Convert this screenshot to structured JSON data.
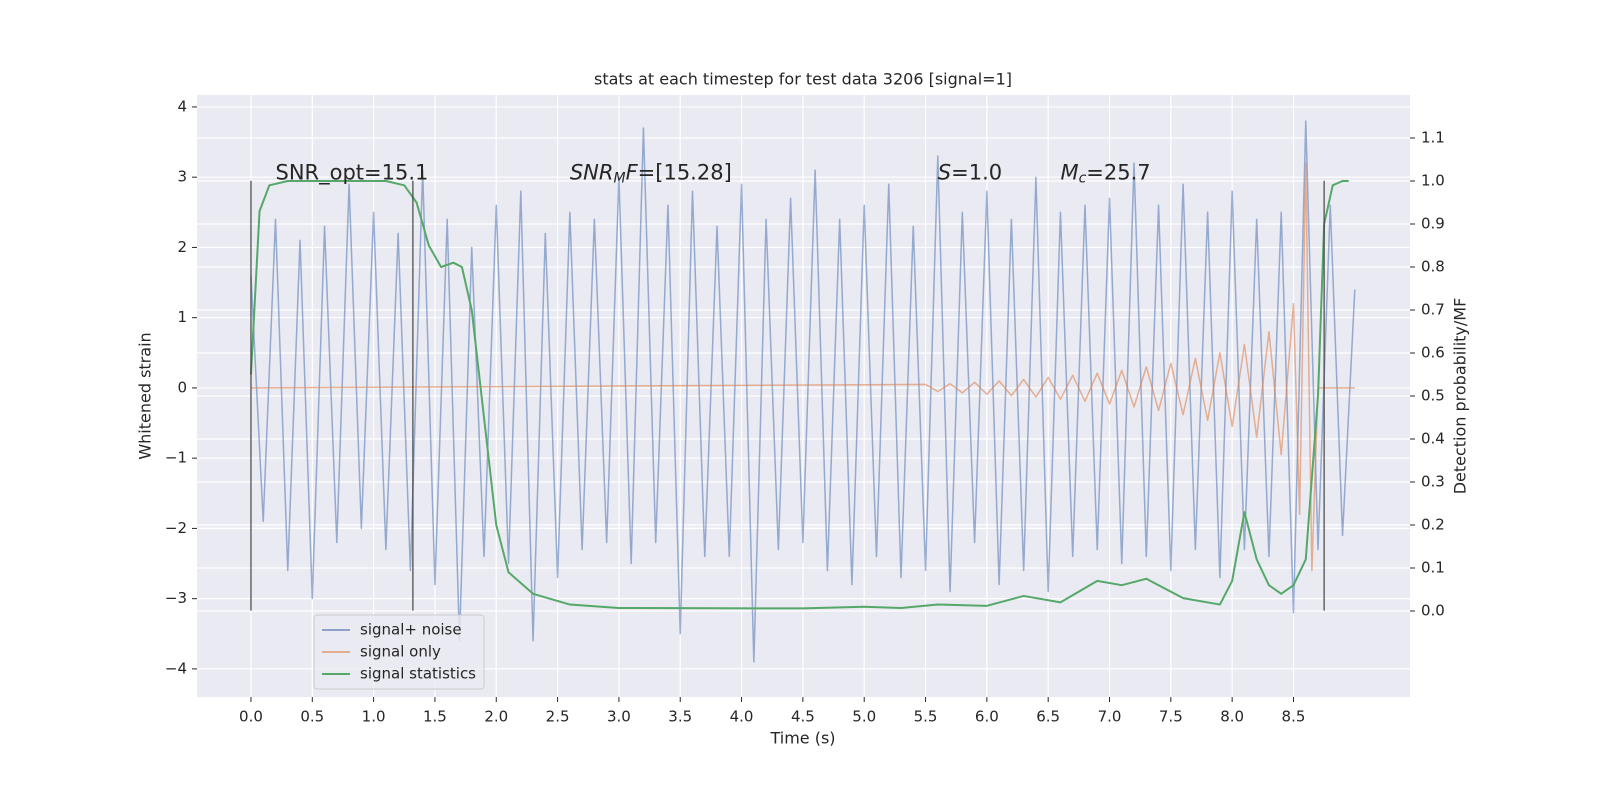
{
  "chart_data": {
    "type": "line",
    "title": "stats at each timestep for test data 3206 [signal=1]",
    "xlabel": "Time (s)",
    "ylabel": "Whitened strain",
    "y2label": "Detection probability/MF",
    "xlim": [
      -0.44,
      9.45
    ],
    "ylim": [
      -4.4,
      4.17
    ],
    "y2lim": [
      -0.2,
      1.2
    ],
    "xticks": [
      {
        "value": 0,
        "label": "0.0"
      },
      {
        "value": 0.5,
        "label": "0.5"
      },
      {
        "value": 1,
        "label": "1.0"
      },
      {
        "value": 1.5,
        "label": "1.5"
      },
      {
        "value": 2,
        "label": "2.0"
      },
      {
        "value": 2.5,
        "label": "2.5"
      },
      {
        "value": 3,
        "label": "3.0"
      },
      {
        "value": 3.5,
        "label": "3.5"
      },
      {
        "value": 4,
        "label": "4.0"
      },
      {
        "value": 4.5,
        "label": "4.5"
      },
      {
        "value": 5,
        "label": "5.0"
      },
      {
        "value": 5.5,
        "label": "5.5"
      },
      {
        "value": 6,
        "label": "6.0"
      },
      {
        "value": 6.5,
        "label": "6.5"
      },
      {
        "value": 7,
        "label": "7.0"
      },
      {
        "value": 7.5,
        "label": "7.5"
      },
      {
        "value": 8,
        "label": "8.0"
      },
      {
        "value": 8.5,
        "label": "8.5"
      }
    ],
    "yticks": [
      {
        "value": -4,
        "label": "−4"
      },
      {
        "value": -3,
        "label": "−3"
      },
      {
        "value": -2,
        "label": "−2"
      },
      {
        "value": -1,
        "label": "−1"
      },
      0,
      1,
      2,
      3,
      4
    ],
    "y2ticks": [
      {
        "value": 0,
        "label": "0.0"
      },
      {
        "value": 0.1,
        "label": "0.1"
      },
      {
        "value": 0.2,
        "label": "0.2"
      },
      {
        "value": 0.3,
        "label": "0.3"
      },
      {
        "value": 0.4,
        "label": "0.4"
      },
      {
        "value": 0.5,
        "label": "0.5"
      },
      {
        "value": 0.6,
        "label": "0.6"
      },
      {
        "value": 0.7,
        "label": "0.7"
      },
      {
        "value": 0.8,
        "label": "0.8"
      },
      {
        "value": 0.9,
        "label": "0.9"
      },
      {
        "value": 1,
        "label": "1.0"
      },
      {
        "value": 1.1,
        "label": "1.1"
      }
    ],
    "grid": true,
    "legend_loc": "lower left",
    "series": [
      {
        "name": "signal+ noise",
        "color": "#4c72b0",
        "axis": "y",
        "x": [
          0,
          0.1,
          0.2,
          0.3,
          0.4,
          0.5,
          0.6,
          0.7,
          0.8,
          0.9,
          1,
          1.1,
          1.2,
          1.3,
          1.4,
          1.5,
          1.6,
          1.7,
          1.8,
          1.9,
          2,
          2.1,
          2.2,
          2.3,
          2.4,
          2.5,
          2.6,
          2.7,
          2.8,
          2.9,
          3,
          3.1,
          3.2,
          3.3,
          3.4,
          3.5,
          3.6,
          3.7,
          3.8,
          3.9,
          4,
          4.1,
          4.2,
          4.3,
          4.4,
          4.5,
          4.6,
          4.7,
          4.8,
          4.9,
          5,
          5.1,
          5.2,
          5.3,
          5.4,
          5.5,
          5.6,
          5.7,
          5.8,
          5.9,
          6,
          6.1,
          6.2,
          6.3,
          6.4,
          6.5,
          6.6,
          6.7,
          6.8,
          6.9,
          7,
          7.1,
          7.2,
          7.3,
          7.4,
          7.5,
          7.6,
          7.7,
          7.8,
          7.9,
          8,
          8.1,
          8.2,
          8.3,
          8.4,
          8.5,
          8.6,
          8.7,
          8.8,
          8.9,
          9
        ],
        "values": [
          1.6,
          -1.9,
          2.4,
          -2.6,
          2.1,
          -3.0,
          2.3,
          -2.2,
          2.9,
          -2.0,
          2.5,
          -2.3,
          2.2,
          -2.6,
          3.1,
          -2.8,
          2.4,
          -3.6,
          2.0,
          -2.4,
          2.6,
          -2.5,
          2.8,
          -3.6,
          2.2,
          -2.7,
          2.5,
          -2.3,
          2.4,
          -2.2,
          3.0,
          -2.5,
          3.7,
          -2.2,
          2.6,
          -3.5,
          2.8,
          -2.4,
          2.3,
          -2.4,
          2.9,
          -3.9,
          2.4,
          -2.3,
          2.7,
          -2.2,
          3.1,
          -2.6,
          2.4,
          -2.8,
          2.6,
          -2.4,
          2.9,
          -2.7,
          2.3,
          -2.6,
          3.3,
          -2.9,
          2.5,
          -2.2,
          2.8,
          -2.8,
          2.4,
          -2.6,
          3.0,
          -2.9,
          2.5,
          -2.4,
          2.6,
          -2.3,
          2.7,
          -2.5,
          3.2,
          -2.4,
          2.6,
          -2.6,
          2.9,
          -2.3,
          2.5,
          -2.7,
          2.8,
          -2.3,
          2.4,
          -2.4,
          2.5,
          -3.2,
          3.8,
          -2.3,
          2.6,
          -2.1,
          1.4
        ]
      },
      {
        "name": "signal only",
        "color": "#dd8452",
        "axis": "y",
        "x": [
          0,
          5.5,
          5.6,
          5.7,
          5.8,
          5.9,
          6,
          6.1,
          6.2,
          6.3,
          6.4,
          6.5,
          6.6,
          6.7,
          6.8,
          6.9,
          7,
          7.1,
          7.2,
          7.3,
          7.4,
          7.5,
          7.6,
          7.7,
          7.8,
          7.9,
          8,
          8.1,
          8.2,
          8.3,
          8.4,
          8.5,
          8.55,
          8.6,
          8.65,
          8.7,
          9
        ],
        "values": [
          0,
          0.05,
          -0.05,
          0.06,
          -0.07,
          0.08,
          -0.09,
          0.1,
          -0.11,
          0.12,
          -0.13,
          0.15,
          -0.16,
          0.18,
          -0.19,
          0.21,
          -0.23,
          0.25,
          -0.27,
          0.3,
          -0.32,
          0.35,
          -0.38,
          0.42,
          -0.46,
          0.5,
          -0.55,
          0.62,
          -0.7,
          0.8,
          -0.95,
          1.2,
          -1.8,
          3.2,
          -2.6,
          0,
          0
        ]
      },
      {
        "name": "signal statistics",
        "color": "#55a868",
        "axis": "y2",
        "x": [
          0,
          0.07,
          0.15,
          0.3,
          1.1,
          1.25,
          1.35,
          1.45,
          1.55,
          1.65,
          1.72,
          1.8,
          1.9,
          2,
          2.1,
          2.3,
          2.6,
          3,
          4.5,
          5,
          5.3,
          5.6,
          6,
          6.3,
          6.6,
          6.9,
          7.1,
          7.3,
          7.6,
          7.9,
          8,
          8.1,
          8.2,
          8.3,
          8.4,
          8.5,
          8.6,
          8.7,
          8.75,
          8.82,
          8.9,
          8.95
        ],
        "values": [
          0.55,
          0.93,
          0.99,
          1,
          1,
          0.99,
          0.95,
          0.85,
          0.8,
          0.81,
          0.8,
          0.7,
          0.45,
          0.2,
          0.09,
          0.04,
          0.015,
          0.007,
          0.006,
          0.01,
          0.007,
          0.015,
          0.012,
          0.035,
          0.02,
          0.07,
          0.06,
          0.075,
          0.03,
          0.015,
          0.07,
          0.23,
          0.12,
          0.06,
          0.04,
          0.06,
          0.12,
          0.5,
          0.9,
          0.99,
          1,
          1
        ]
      }
    ],
    "vlines": {
      "x": [
        0,
        1.32,
        8.75
      ],
      "ymin": -3.17,
      "ymax": 2.95,
      "color": "#444444"
    },
    "annotations": [
      {
        "x": 0.2,
        "y": 3.05,
        "parts": [
          {
            "text": "SNR_opt=15.1",
            "style": "plain"
          }
        ]
      },
      {
        "x": 2.6,
        "y": 3.05,
        "parts": [
          {
            "text": "SNR",
            "style": "italic"
          },
          {
            "text": "M",
            "style": "sub"
          },
          {
            "text": "F",
            "style": "italic"
          },
          {
            "text": "=[15.28]",
            "style": "plain"
          }
        ]
      },
      {
        "x": 5.6,
        "y": 3.05,
        "parts": [
          {
            "text": "S",
            "style": "italic"
          },
          {
            "text": "=1.0",
            "style": "plain"
          }
        ]
      },
      {
        "x": 6.6,
        "y": 3.05,
        "parts": [
          {
            "text": "M",
            "style": "italic"
          },
          {
            "text": "c",
            "style": "sub"
          },
          {
            "text": "=25.7",
            "style": "plain"
          }
        ]
      }
    ]
  }
}
